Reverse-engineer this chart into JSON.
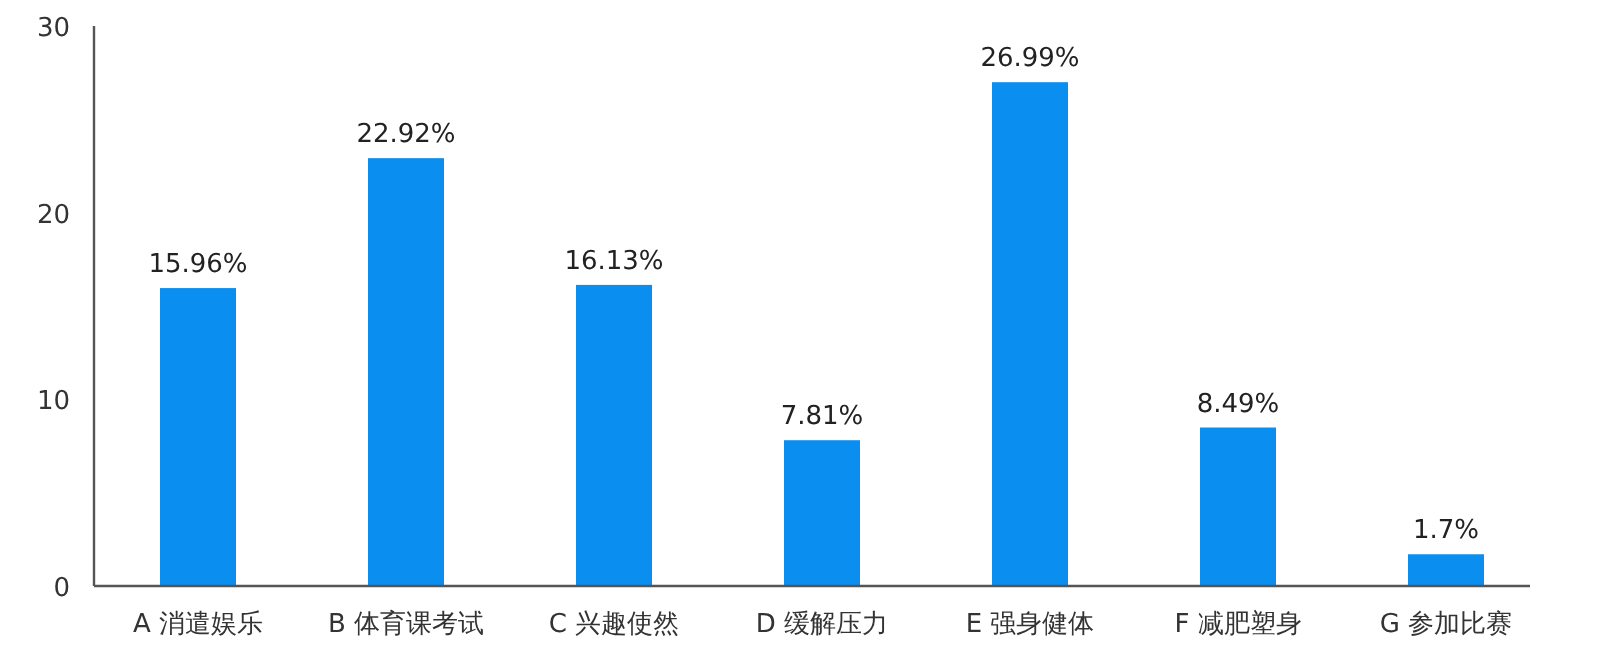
{
  "chart_data": {
    "type": "bar",
    "categories": [
      "A 消遣娱乐",
      "B 体育课考试",
      "C 兴趣使然",
      "D 缓解压力",
      "E 强身健体",
      "F 减肥塑身",
      "G 参加比赛"
    ],
    "values": [
      15.96,
      22.92,
      16.13,
      7.81,
      26.99,
      8.49,
      1.7
    ],
    "value_labels": [
      "15.96%",
      "22.92%",
      "16.13%",
      "7.81%",
      "26.99%",
      "8.49%",
      "1.7%"
    ],
    "color": "#0a8ef0",
    "ylim": [
      0,
      30
    ],
    "yticks": [
      0,
      10,
      20,
      30
    ],
    "grid": false
  }
}
